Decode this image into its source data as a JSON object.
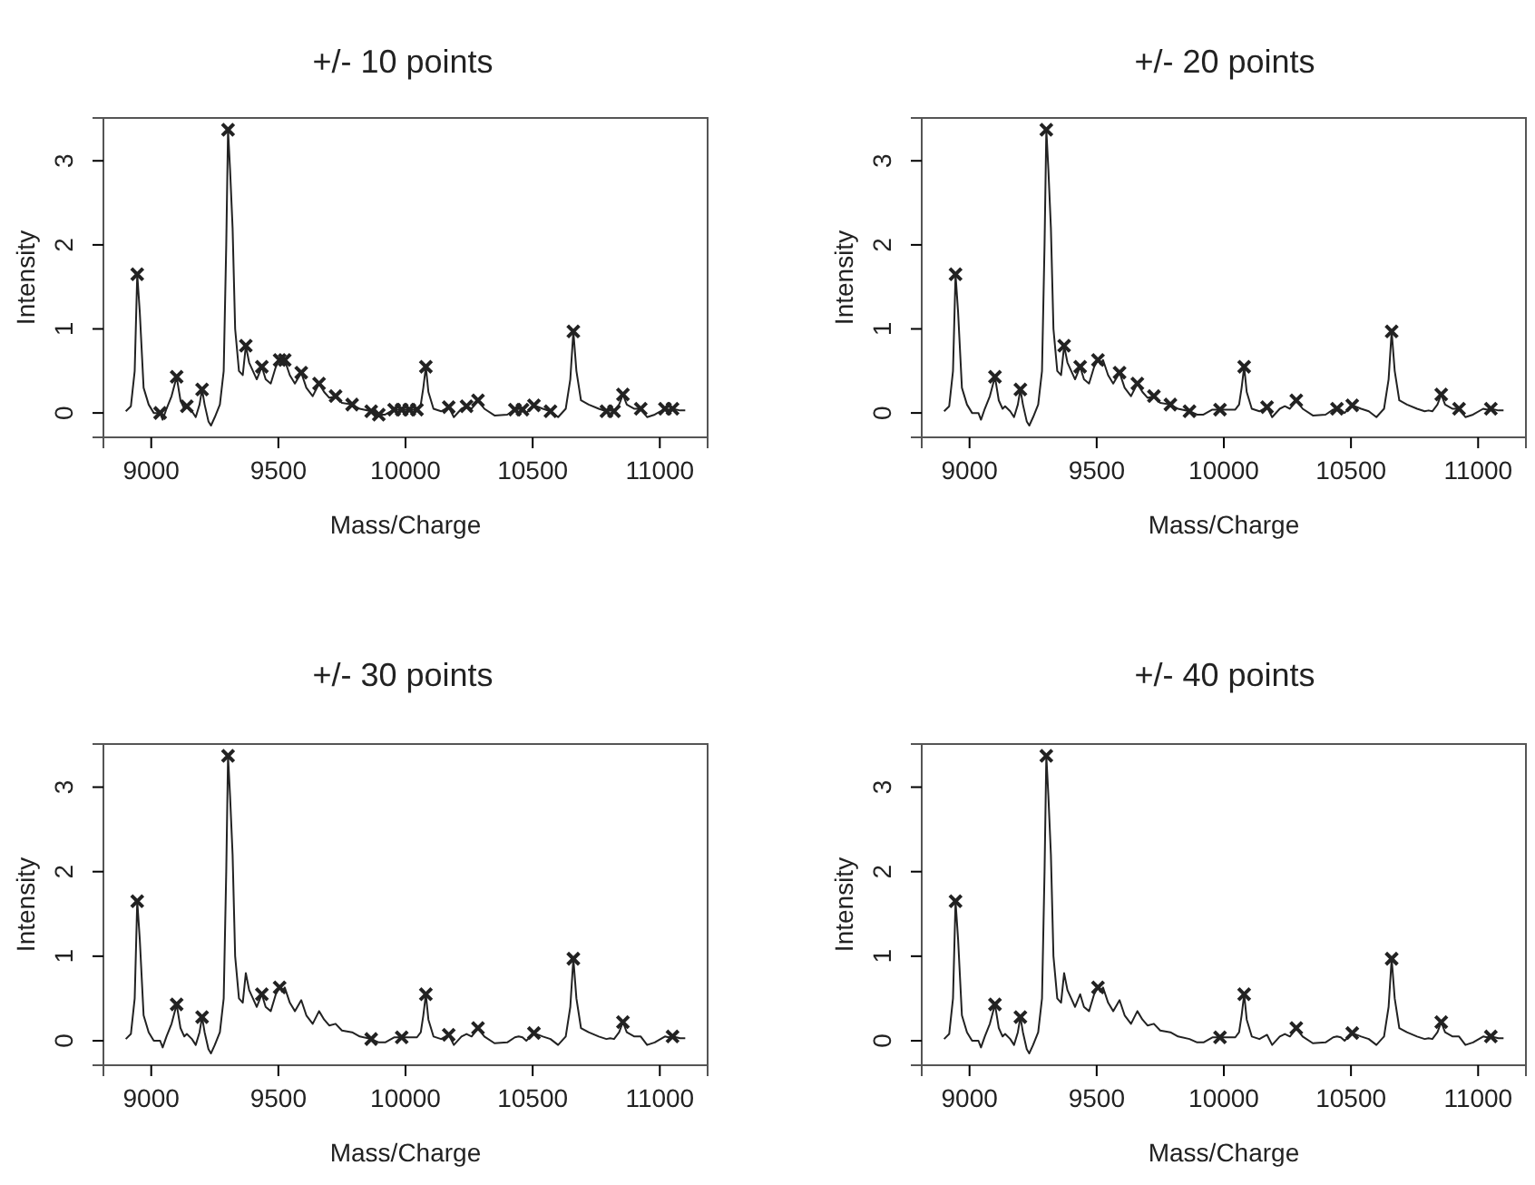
{
  "chart_data": [
    {
      "type": "line",
      "title": "+/- 10 points",
      "xlabel": "Mass/Charge",
      "ylabel": "Intensity",
      "xlim": [
        8812,
        11188
      ],
      "ylim": [
        -0.29,
        3.51
      ],
      "xticks": [
        9000,
        9500,
        10000,
        10500,
        11000
      ],
      "yticks": [
        0,
        1,
        2,
        3
      ],
      "grid": false,
      "series": [
        {
          "type": "line",
          "color": "#222222",
          "marker": "none",
          "x": [
            8900,
            8920,
            8935,
            8945,
            8955,
            8970,
            8990,
            9010,
            9035,
            9045,
            9060,
            9080,
            9100,
            9115,
            9130,
            9140,
            9160,
            9175,
            9190,
            9200,
            9210,
            9225,
            9235,
            9250,
            9270,
            9285,
            9295,
            9302,
            9310,
            9320,
            9330,
            9345,
            9360,
            9372,
            9385,
            9400,
            9415,
            9435,
            9450,
            9470,
            9490,
            9505,
            9515,
            9525,
            9545,
            9565,
            9590,
            9610,
            9635,
            9660,
            9680,
            9700,
            9725,
            9750,
            9790,
            9820,
            9865,
            9895,
            9920,
            9955,
            9985,
            10015,
            10045,
            10060,
            10070,
            10080,
            10090,
            10110,
            10140,
            10170,
            10190,
            10220,
            10240,
            10260,
            10285,
            10310,
            10350,
            10400,
            10430,
            10445,
            10460,
            10475,
            10505,
            10540,
            10570,
            10600,
            10630,
            10648,
            10660,
            10672,
            10690,
            10720,
            10760,
            10790,
            10805,
            10820,
            10840,
            10855,
            10870,
            10900,
            10925,
            10950,
            10980,
            11020,
            11035,
            11050,
            11080,
            11100
          ],
          "values": [
            0.02,
            0.08,
            0.5,
            1.65,
            1.2,
            0.3,
            0.1,
            0.0,
            0.0,
            -0.08,
            0.05,
            0.2,
            0.43,
            0.15,
            0.05,
            0.08,
            0.02,
            -0.05,
            0.1,
            0.28,
            0.1,
            -0.1,
            -0.15,
            -0.05,
            0.1,
            0.5,
            2.0,
            3.37,
            2.9,
            2.2,
            1.0,
            0.5,
            0.45,
            0.8,
            0.6,
            0.5,
            0.4,
            0.55,
            0.4,
            0.35,
            0.55,
            0.63,
            0.58,
            0.63,
            0.45,
            0.35,
            0.48,
            0.3,
            0.2,
            0.35,
            0.25,
            0.18,
            0.2,
            0.12,
            0.1,
            0.05,
            0.02,
            -0.02,
            -0.02,
            0.04,
            0.04,
            0.04,
            0.04,
            0.1,
            0.3,
            0.55,
            0.25,
            0.05,
            0.02,
            0.07,
            -0.05,
            0.05,
            0.08,
            0.05,
            0.15,
            0.05,
            -0.03,
            -0.02,
            0.04,
            0.05,
            0.04,
            0.0,
            0.09,
            0.05,
            0.02,
            -0.05,
            0.05,
            0.4,
            0.97,
            0.5,
            0.15,
            0.1,
            0.05,
            0.02,
            0.03,
            0.02,
            0.1,
            0.22,
            0.1,
            0.05,
            0.05,
            -0.05,
            -0.02,
            0.05,
            0.04,
            0.05,
            0.03,
            0.03
          ]
        },
        {
          "type": "scatter",
          "color": "#222222",
          "marker": "cross",
          "x": [
            8945,
            9035,
            9100,
            9140,
            9200,
            9302,
            9372,
            9435,
            9505,
            9525,
            9590,
            9660,
            9725,
            9790,
            9865,
            9895,
            9955,
            9985,
            10015,
            10045,
            10080,
            10170,
            10240,
            10285,
            10430,
            10460,
            10505,
            10570,
            10660,
            10790,
            10820,
            10855,
            10925,
            11020,
            11050
          ],
          "values": [
            1.65,
            0,
            0.43,
            0.08,
            0.28,
            3.37,
            0.8,
            0.55,
            0.63,
            0.63,
            0.48,
            0.35,
            0.2,
            0.1,
            0.02,
            -0.02,
            0.04,
            0.04,
            0.04,
            0.04,
            0.55,
            0.07,
            0.08,
            0.15,
            0.04,
            0.04,
            0.09,
            0.02,
            0.97,
            0.02,
            0.02,
            0.22,
            0.05,
            0.05,
            0.05
          ]
        }
      ]
    },
    {
      "type": "line",
      "title": "+/- 20 points",
      "xlabel": "Mass/Charge",
      "ylabel": "Intensity",
      "xlim": [
        8812,
        11188
      ],
      "ylim": [
        -0.29,
        3.51
      ],
      "xticks": [
        9000,
        9500,
        10000,
        10500,
        11000
      ],
      "yticks": [
        0,
        1,
        2,
        3
      ],
      "grid": false,
      "series": [
        {
          "type": "line",
          "color": "#222222",
          "marker": "none",
          "x": [
            8900,
            8920,
            8935,
            8945,
            8955,
            8970,
            8990,
            9010,
            9035,
            9045,
            9060,
            9080,
            9100,
            9115,
            9130,
            9140,
            9160,
            9175,
            9190,
            9200,
            9210,
            9225,
            9235,
            9250,
            9270,
            9285,
            9295,
            9302,
            9310,
            9320,
            9330,
            9345,
            9360,
            9372,
            9385,
            9400,
            9415,
            9435,
            9450,
            9470,
            9490,
            9505,
            9515,
            9525,
            9545,
            9565,
            9590,
            9610,
            9635,
            9660,
            9680,
            9700,
            9725,
            9750,
            9790,
            9820,
            9865,
            9895,
            9920,
            9955,
            9985,
            10015,
            10045,
            10060,
            10070,
            10080,
            10090,
            10110,
            10140,
            10170,
            10190,
            10220,
            10240,
            10260,
            10285,
            10310,
            10350,
            10400,
            10430,
            10445,
            10460,
            10475,
            10505,
            10540,
            10570,
            10600,
            10630,
            10648,
            10660,
            10672,
            10690,
            10720,
            10760,
            10790,
            10805,
            10820,
            10840,
            10855,
            10870,
            10900,
            10925,
            10950,
            10980,
            11020,
            11035,
            11050,
            11080,
            11100
          ],
          "values": [
            0.02,
            0.08,
            0.5,
            1.65,
            1.2,
            0.3,
            0.1,
            0.0,
            0.0,
            -0.08,
            0.05,
            0.2,
            0.43,
            0.15,
            0.05,
            0.08,
            0.02,
            -0.05,
            0.1,
            0.28,
            0.1,
            -0.1,
            -0.15,
            -0.05,
            0.1,
            0.5,
            2.0,
            3.37,
            2.9,
            2.2,
            1.0,
            0.5,
            0.45,
            0.8,
            0.6,
            0.5,
            0.4,
            0.55,
            0.4,
            0.35,
            0.55,
            0.63,
            0.58,
            0.63,
            0.45,
            0.35,
            0.48,
            0.3,
            0.2,
            0.35,
            0.25,
            0.18,
            0.2,
            0.12,
            0.1,
            0.05,
            0.02,
            -0.02,
            -0.02,
            0.04,
            0.04,
            0.04,
            0.04,
            0.1,
            0.3,
            0.55,
            0.25,
            0.05,
            0.02,
            0.07,
            -0.05,
            0.05,
            0.08,
            0.05,
            0.15,
            0.05,
            -0.03,
            -0.02,
            0.04,
            0.05,
            0.04,
            0.0,
            0.09,
            0.05,
            0.02,
            -0.05,
            0.05,
            0.4,
            0.97,
            0.5,
            0.15,
            0.1,
            0.05,
            0.02,
            0.03,
            0.02,
            0.1,
            0.22,
            0.1,
            0.05,
            0.05,
            -0.05,
            -0.02,
            0.05,
            0.04,
            0.05,
            0.03,
            0.03
          ]
        },
        {
          "type": "scatter",
          "color": "#222222",
          "marker": "cross",
          "x": [
            8945,
            9100,
            9200,
            9302,
            9372,
            9435,
            9505,
            9590,
            9660,
            9725,
            9790,
            9865,
            9985,
            10080,
            10170,
            10285,
            10445,
            10505,
            10660,
            10855,
            10925,
            11050
          ],
          "values": [
            1.65,
            0.43,
            0.28,
            3.37,
            0.8,
            0.55,
            0.63,
            0.48,
            0.35,
            0.2,
            0.1,
            0.02,
            0.04,
            0.55,
            0.07,
            0.15,
            0.05,
            0.09,
            0.97,
            0.22,
            0.05,
            0.05
          ]
        }
      ]
    },
    {
      "type": "line",
      "title": "+/- 30 points",
      "xlabel": "Mass/Charge",
      "ylabel": "Intensity",
      "xlim": [
        8812,
        11188
      ],
      "ylim": [
        -0.29,
        3.51
      ],
      "xticks": [
        9000,
        9500,
        10000,
        10500,
        11000
      ],
      "yticks": [
        0,
        1,
        2,
        3
      ],
      "grid": false,
      "series": [
        {
          "type": "line",
          "color": "#222222",
          "marker": "none",
          "x": [
            8900,
            8920,
            8935,
            8945,
            8955,
            8970,
            8990,
            9010,
            9035,
            9045,
            9060,
            9080,
            9100,
            9115,
            9130,
            9140,
            9160,
            9175,
            9190,
            9200,
            9210,
            9225,
            9235,
            9250,
            9270,
            9285,
            9295,
            9302,
            9310,
            9320,
            9330,
            9345,
            9360,
            9372,
            9385,
            9400,
            9415,
            9435,
            9450,
            9470,
            9490,
            9505,
            9515,
            9525,
            9545,
            9565,
            9590,
            9610,
            9635,
            9660,
            9680,
            9700,
            9725,
            9750,
            9790,
            9820,
            9865,
            9895,
            9920,
            9955,
            9985,
            10015,
            10045,
            10060,
            10070,
            10080,
            10090,
            10110,
            10140,
            10170,
            10190,
            10220,
            10240,
            10260,
            10285,
            10310,
            10350,
            10400,
            10430,
            10445,
            10460,
            10475,
            10505,
            10540,
            10570,
            10600,
            10630,
            10648,
            10660,
            10672,
            10690,
            10720,
            10760,
            10790,
            10805,
            10820,
            10840,
            10855,
            10870,
            10900,
            10925,
            10950,
            10980,
            11020,
            11035,
            11050,
            11080,
            11100
          ],
          "values": [
            0.02,
            0.08,
            0.5,
            1.65,
            1.2,
            0.3,
            0.1,
            0.0,
            0.0,
            -0.08,
            0.05,
            0.2,
            0.43,
            0.15,
            0.05,
            0.08,
            0.02,
            -0.05,
            0.1,
            0.28,
            0.1,
            -0.1,
            -0.15,
            -0.05,
            0.1,
            0.5,
            2.0,
            3.37,
            2.9,
            2.2,
            1.0,
            0.5,
            0.45,
            0.8,
            0.6,
            0.5,
            0.4,
            0.55,
            0.4,
            0.35,
            0.55,
            0.63,
            0.58,
            0.63,
            0.45,
            0.35,
            0.48,
            0.3,
            0.2,
            0.35,
            0.25,
            0.18,
            0.2,
            0.12,
            0.1,
            0.05,
            0.02,
            -0.02,
            -0.02,
            0.04,
            0.04,
            0.04,
            0.04,
            0.1,
            0.3,
            0.55,
            0.25,
            0.05,
            0.02,
            0.07,
            -0.05,
            0.05,
            0.08,
            0.05,
            0.15,
            0.05,
            -0.03,
            -0.02,
            0.04,
            0.05,
            0.04,
            0.0,
            0.09,
            0.05,
            0.02,
            -0.05,
            0.05,
            0.4,
            0.97,
            0.5,
            0.15,
            0.1,
            0.05,
            0.02,
            0.03,
            0.02,
            0.1,
            0.22,
            0.1,
            0.05,
            0.05,
            -0.05,
            -0.02,
            0.05,
            0.04,
            0.05,
            0.03,
            0.03
          ]
        },
        {
          "type": "scatter",
          "color": "#222222",
          "marker": "cross",
          "x": [
            8945,
            9100,
            9200,
            9302,
            9435,
            9505,
            9865,
            9985,
            10080,
            10170,
            10285,
            10505,
            10660,
            10855,
            11050
          ],
          "values": [
            1.65,
            0.43,
            0.28,
            3.37,
            0.55,
            0.63,
            0.02,
            0.04,
            0.55,
            0.07,
            0.15,
            0.09,
            0.97,
            0.22,
            0.05
          ]
        }
      ]
    },
    {
      "type": "line",
      "title": "+/- 40 points",
      "xlabel": "Mass/Charge",
      "ylabel": "Intensity",
      "xlim": [
        8812,
        11188
      ],
      "ylim": [
        -0.29,
        3.51
      ],
      "xticks": [
        9000,
        9500,
        10000,
        10500,
        11000
      ],
      "yticks": [
        0,
        1,
        2,
        3
      ],
      "grid": false,
      "series": [
        {
          "type": "line",
          "color": "#222222",
          "marker": "none",
          "x": [
            8900,
            8920,
            8935,
            8945,
            8955,
            8970,
            8990,
            9010,
            9035,
            9045,
            9060,
            9080,
            9100,
            9115,
            9130,
            9140,
            9160,
            9175,
            9190,
            9200,
            9210,
            9225,
            9235,
            9250,
            9270,
            9285,
            9295,
            9302,
            9310,
            9320,
            9330,
            9345,
            9360,
            9372,
            9385,
            9400,
            9415,
            9435,
            9450,
            9470,
            9490,
            9505,
            9515,
            9525,
            9545,
            9565,
            9590,
            9610,
            9635,
            9660,
            9680,
            9700,
            9725,
            9750,
            9790,
            9820,
            9865,
            9895,
            9920,
            9955,
            9985,
            10015,
            10045,
            10060,
            10070,
            10080,
            10090,
            10110,
            10140,
            10170,
            10190,
            10220,
            10240,
            10260,
            10285,
            10310,
            10350,
            10400,
            10430,
            10445,
            10460,
            10475,
            10505,
            10540,
            10570,
            10600,
            10630,
            10648,
            10660,
            10672,
            10690,
            10720,
            10760,
            10790,
            10805,
            10820,
            10840,
            10855,
            10870,
            10900,
            10925,
            10950,
            10980,
            11020,
            11035,
            11050,
            11080,
            11100
          ],
          "values": [
            0.02,
            0.08,
            0.5,
            1.65,
            1.2,
            0.3,
            0.1,
            0.0,
            0.0,
            -0.08,
            0.05,
            0.2,
            0.43,
            0.15,
            0.05,
            0.08,
            0.02,
            -0.05,
            0.1,
            0.28,
            0.1,
            -0.1,
            -0.15,
            -0.05,
            0.1,
            0.5,
            2.0,
            3.37,
            2.9,
            2.2,
            1.0,
            0.5,
            0.45,
            0.8,
            0.6,
            0.5,
            0.4,
            0.55,
            0.4,
            0.35,
            0.55,
            0.63,
            0.58,
            0.63,
            0.45,
            0.35,
            0.48,
            0.3,
            0.2,
            0.35,
            0.25,
            0.18,
            0.2,
            0.12,
            0.1,
            0.05,
            0.02,
            -0.02,
            -0.02,
            0.04,
            0.04,
            0.04,
            0.04,
            0.1,
            0.3,
            0.55,
            0.25,
            0.05,
            0.02,
            0.07,
            -0.05,
            0.05,
            0.08,
            0.05,
            0.15,
            0.05,
            -0.03,
            -0.02,
            0.04,
            0.05,
            0.04,
            0.0,
            0.09,
            0.05,
            0.02,
            -0.05,
            0.05,
            0.4,
            0.97,
            0.5,
            0.15,
            0.1,
            0.05,
            0.02,
            0.03,
            0.02,
            0.1,
            0.22,
            0.1,
            0.05,
            0.05,
            -0.05,
            -0.02,
            0.05,
            0.04,
            0.05,
            0.03,
            0.03
          ]
        },
        {
          "type": "scatter",
          "color": "#222222",
          "marker": "cross",
          "x": [
            8945,
            9100,
            9200,
            9302,
            9505,
            9985,
            10080,
            10285,
            10505,
            10660,
            10855,
            11050
          ],
          "values": [
            1.65,
            0.43,
            0.28,
            3.37,
            0.63,
            0.04,
            0.55,
            0.15,
            0.09,
            0.97,
            0.22,
            0.05
          ]
        }
      ]
    }
  ]
}
